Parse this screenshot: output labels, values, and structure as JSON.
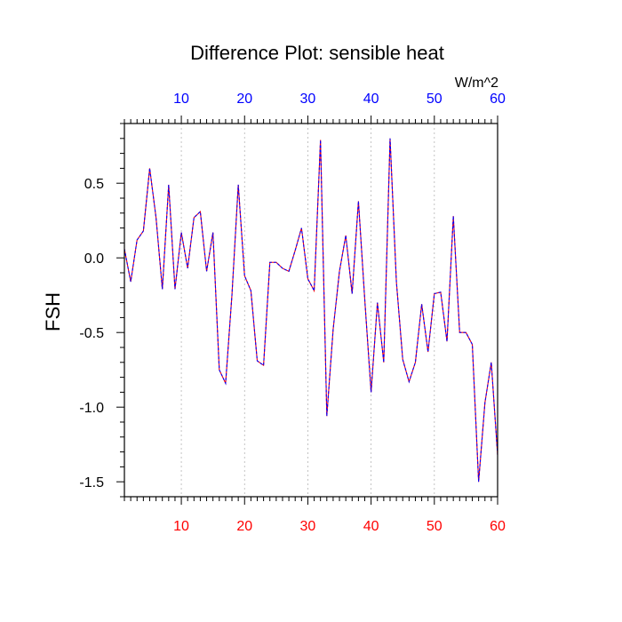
{
  "chart_data": {
    "type": "line",
    "title": "Difference Plot: sensible heat",
    "units": "W/m^2",
    "ylabel": "FSH",
    "xlabel": "",
    "xlim": [
      1,
      60
    ],
    "ylim": [
      -1.6,
      0.9
    ],
    "x_ticks": [
      10,
      20,
      30,
      40,
      50,
      60
    ],
    "x_tick_labels": [
      "10",
      "20",
      "30",
      "40",
      "50",
      "60"
    ],
    "y_ticks": [
      0.5,
      0.0,
      -0.5,
      -1.0,
      -1.5
    ],
    "y_tick_labels": [
      "0.5",
      "0.0",
      "-0.5",
      "-1.0",
      "-1.5"
    ],
    "x_tick_color_bottom": "#ff0000",
    "x_tick_color_top": "#0000ff",
    "grid_vertical": "dashed-gray",
    "series": [
      {
        "line_colors": [
          "#ff0000",
          "#0000ff"
        ],
        "line_style": "dashed",
        "values": [
          0.06,
          -0.16,
          0.12,
          0.18,
          0.6,
          0.27,
          -0.21,
          0.49,
          -0.21,
          0.17,
          -0.07,
          0.27,
          0.31,
          -0.09,
          0.17,
          -0.75,
          -0.84,
          -0.25,
          0.49,
          -0.12,
          -0.22,
          -0.69,
          -0.72,
          -0.03,
          -0.03,
          -0.07,
          -0.09,
          0.05,
          0.2,
          -0.14,
          -0.22,
          0.79,
          -1.06,
          -0.48,
          -0.09,
          0.15,
          -0.24,
          0.38,
          -0.28,
          -0.9,
          -0.3,
          -0.7,
          0.8,
          -0.16,
          -0.68,
          -0.83,
          -0.7,
          -0.31,
          -0.63,
          -0.24,
          -0.23,
          -0.56,
          0.28,
          -0.5,
          -0.5,
          -0.58,
          -1.5,
          -0.97,
          -0.7,
          -1.32
        ]
      }
    ]
  }
}
